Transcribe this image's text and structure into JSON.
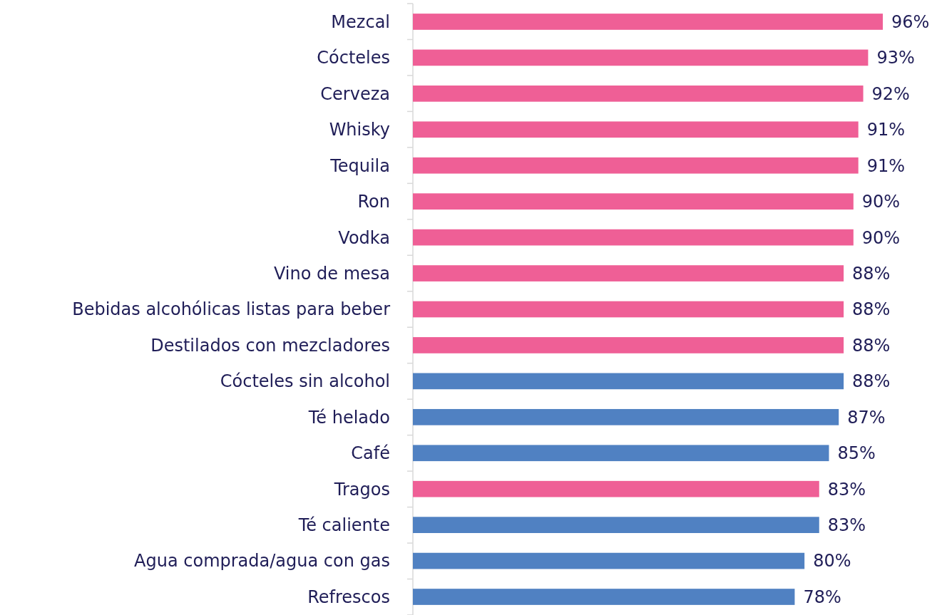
{
  "chart_data": {
    "type": "bar",
    "orientation": "horizontal",
    "categories": [
      "Mezcal",
      "Cócteles",
      "Cerveza",
      "Whisky",
      "Tequila",
      "Ron",
      "Vodka",
      "Vino de mesa",
      "Bebidas alcohólicas listas para beber",
      "Destilados con mezcladores",
      "Cócteles sin alcohol",
      "Té helado",
      "Café",
      "Tragos",
      "Té caliente",
      "Agua comprada/agua con gas",
      "Refrescos"
    ],
    "values": [
      96,
      93,
      92,
      91,
      91,
      90,
      90,
      88,
      88,
      88,
      88,
      87,
      85,
      83,
      83,
      80,
      78
    ],
    "colors": [
      "#ef5f96",
      "#ef5f96",
      "#ef5f96",
      "#ef5f96",
      "#ef5f96",
      "#ef5f96",
      "#ef5f96",
      "#ef5f96",
      "#ef5f96",
      "#ef5f96",
      "#5081c2",
      "#5081c2",
      "#5081c2",
      "#ef5f96",
      "#5081c2",
      "#5081c2",
      "#5081c2"
    ],
    "value_labels": [
      "96%",
      "93%",
      "92%",
      "91%",
      "91%",
      "90%",
      "90%",
      "88%",
      "88%",
      "88%",
      "88%",
      "87%",
      "85%",
      "83%",
      "83%",
      "80%",
      "78%"
    ],
    "tick_labels": "y"
  }
}
